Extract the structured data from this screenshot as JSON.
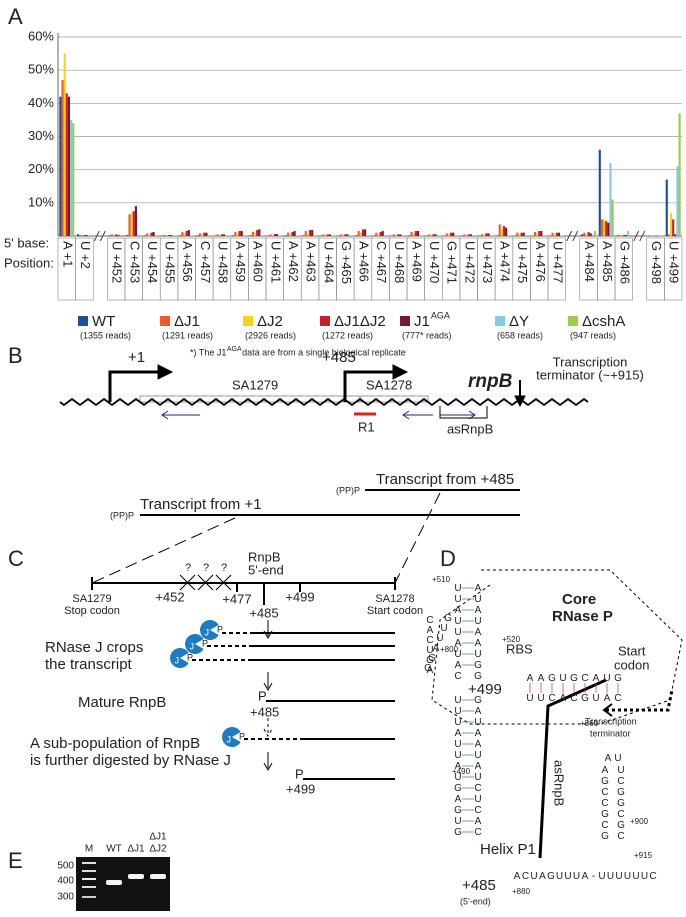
{
  "panel_labels": [
    "A",
    "B",
    "C",
    "D",
    "E"
  ],
  "chart_data": {
    "type": "bar",
    "row_labels": [
      "5' base:",
      "Position:"
    ],
    "categories": [
      "A +1",
      "U +2",
      "U +452",
      "C +453",
      "U +454",
      "U +455",
      "A +456",
      "C +457",
      "U +458",
      "A +459",
      "A +460",
      "U +461",
      "A +462",
      "A +463",
      "U +464",
      "G +465",
      "A +466",
      "C +467",
      "U +468",
      "A +469",
      "U +470",
      "G +471",
      "U +472",
      "U +473",
      "A +474",
      "U +475",
      "A +476",
      "U +477",
      "A +484",
      "A +485",
      "G +486",
      "G +498",
      "U +499"
    ],
    "axis_breaks_after": [
      1,
      27,
      30
    ],
    "ylim": [
      0,
      60
    ],
    "yticks": [
      {
        "value": 10,
        "label": "10%"
      },
      {
        "value": 20,
        "label": "20%"
      },
      {
        "value": 30,
        "label": "30%"
      },
      {
        "value": 40,
        "label": "40%"
      },
      {
        "value": 50,
        "label": "50%"
      },
      {
        "value": 60,
        "label": "60%"
      }
    ],
    "grid": true,
    "series": [
      {
        "name": "WT",
        "reads": "(1355 reads)",
        "color": "#1f4e99",
        "values": [
          42,
          0.5,
          0.2,
          0.3,
          0.2,
          0.1,
          0.2,
          0.2,
          0.1,
          0.2,
          0.2,
          0.1,
          0.2,
          0.2,
          0.1,
          0.1,
          0.2,
          0.2,
          0.1,
          0.2,
          0.1,
          0.1,
          0.1,
          0.1,
          0.2,
          0.1,
          0.1,
          0.1,
          0.5,
          26,
          0.2,
          0.1,
          17
        ]
      },
      {
        "name": "ΔJ1",
        "reads": "(1291 reads)",
        "color": "#f05a28",
        "values": [
          47,
          0.3,
          0.5,
          6.5,
          0.8,
          0.3,
          1.2,
          0.8,
          0.5,
          1.2,
          1.3,
          0.5,
          1,
          1.5,
          0.5,
          0.5,
          1.5,
          1,
          0.5,
          1.2,
          0.5,
          0.8,
          0.5,
          0.5,
          3.5,
          1,
          1.2,
          1,
          1,
          5,
          0.3,
          0.1,
          0.5
        ]
      },
      {
        "name": "ΔJ2",
        "reads": "(2926 reads)",
        "color": "#f7d117",
        "values": [
          55,
          0.3,
          0.3,
          7,
          0.5,
          0.2,
          0.8,
          0.5,
          0.3,
          0.8,
          0.8,
          0.3,
          0.5,
          0.8,
          0.3,
          0.3,
          1,
          0.5,
          0.3,
          0.8,
          0.3,
          0.5,
          0.3,
          0.3,
          2,
          0.5,
          0.8,
          0.5,
          0.5,
          5,
          0.2,
          0.1,
          7
        ]
      },
      {
        "name": "ΔJ1ΔJ2",
        "reads": "(1272 reads)",
        "color": "#c8202a",
        "values": [
          43,
          0.3,
          0.5,
          7.5,
          1,
          0.3,
          1.5,
          1,
          0.5,
          1.5,
          1.8,
          0.6,
          1.2,
          1.8,
          0.5,
          0.5,
          2,
          1.2,
          0.5,
          1.5,
          0.5,
          1,
          0.5,
          0.8,
          3,
          1,
          1.5,
          1,
          1.2,
          4.5,
          0.3,
          0.1,
          5
        ]
      },
      {
        "name": "J1",
        "name_superscript": "AGA",
        "reads": "(777* reads)",
        "color": "#7a1532",
        "values": [
          42,
          0.3,
          0.3,
          9,
          1.2,
          0.3,
          1.8,
          1,
          0.5,
          1.5,
          2,
          0.6,
          1.5,
          1.8,
          0.5,
          0.5,
          2,
          1.5,
          0.5,
          1.5,
          0.5,
          1,
          0.5,
          0.8,
          2.5,
          1,
          1.5,
          1,
          0.8,
          4,
          0.3,
          0.1,
          0.5
        ]
      },
      {
        "name": "ΔY",
        "reads": "(658 reads)",
        "color": "#86c8ea",
        "values": [
          35,
          0.3,
          0,
          0.3,
          0.2,
          0.1,
          0.2,
          0.2,
          0.1,
          0.2,
          0.2,
          0.1,
          0.2,
          0.2,
          0.1,
          0.1,
          0.2,
          0.2,
          0.1,
          0.2,
          0.1,
          0.1,
          0.1,
          0.1,
          0.2,
          0.1,
          0.1,
          0.1,
          0.5,
          22,
          1.5,
          0.1,
          21
        ]
      },
      {
        "name": "ΔcshA",
        "reads": "(947 reads)",
        "color": "#9acd4c",
        "values": [
          34,
          0.3,
          0,
          0.3,
          0.2,
          0.1,
          0.2,
          0.2,
          0.1,
          0.2,
          0.2,
          0.1,
          0.2,
          0.2,
          0.1,
          0.1,
          0.2,
          0.2,
          0.1,
          0.2,
          0.1,
          0.1,
          0.1,
          0.1,
          0.2,
          0.1,
          0.1,
          0.1,
          1.5,
          11,
          0.3,
          0.1,
          37
        ]
      }
    ],
    "footnote": [
      "*) The J1",
      "AGA",
      " data are from a single biological replicate"
    ]
  },
  "panel_b": {
    "tss": [
      "+1",
      "+485"
    ],
    "genes": [
      "SA1279",
      "SA1278"
    ],
    "gene_name": "rnpB",
    "terminator": [
      "Transcription",
      "terminator (~+915)"
    ],
    "r1": "R1",
    "asrna": "asRnpB",
    "transcript_end": "(PP)P",
    "transcripts": [
      "Transcript from +485",
      "Transcript from +1"
    ]
  },
  "panel_c": {
    "left": [
      "SA1279",
      "Stop codon"
    ],
    "right": [
      "SA1278",
      "Start codon"
    ],
    "positions": [
      "+452",
      "+477",
      "+485",
      "+499"
    ],
    "question": "?",
    "rnpb": [
      "RnpB",
      "5'-end"
    ],
    "enzyme": "J",
    "phosphate": "P",
    "step1": [
      "RNase J crops",
      "the transcript"
    ],
    "step2": "Mature RnpB",
    "step3": [
      "A sub-population of RnpB",
      "is further digested by RNase J"
    ]
  },
  "panel_d": {
    "labels": [
      "Core",
      "RNase P",
      "RBS",
      "Start",
      "codon",
      "+499",
      "asRnpB",
      "Helix P1",
      "Transcription",
      "terminator",
      "+485",
      "(5'-end)"
    ],
    "numbers": [
      "+510",
      "+800",
      "+520",
      "+860",
      "+490",
      "+900",
      "+915",
      "+880"
    ],
    "strands": [
      "UUAUUAUAC",
      "AUAUAAUGG",
      "GUUAGG",
      "CACUGA",
      "UUUAUUAUGAGUG",
      "GAUAAUAUCUCAC",
      "AAGUGCAUG",
      "UUCACGUAC",
      "AGCCGCG",
      "UCGGCGC",
      "AU",
      "ACUAGUUUA-UUUUUUC"
    ]
  },
  "panel_e": {
    "lanes": [
      "M",
      "WT",
      "ΔJ1",
      "ΔJ1",
      "ΔJ2"
    ],
    "sizes": [
      "500",
      "400",
      "300"
    ]
  }
}
